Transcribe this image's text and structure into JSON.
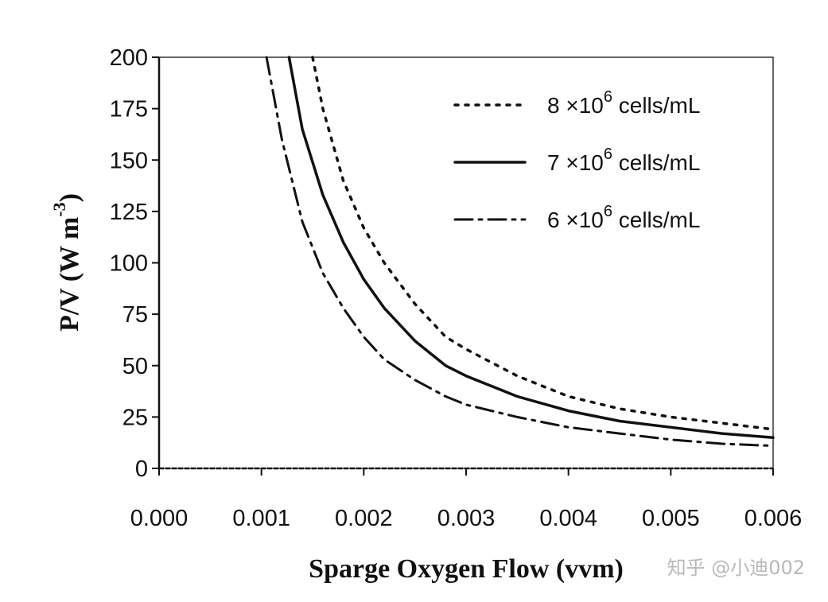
{
  "chart_data": {
    "type": "line",
    "title": "",
    "xlabel": "Sparge Oxygen Flow (vvm)",
    "ylabel": "P/V (W m",
    "ylabel_sup": "-3",
    "ylabel_close": ")",
    "xlim": [
      0,
      0.006
    ],
    "ylim": [
      0,
      200
    ],
    "x_ticks": [
      {
        "value": 0.0,
        "label": "0.000"
      },
      {
        "value": 0.001,
        "label": "0.001"
      },
      {
        "value": 0.002,
        "label": "0.002"
      },
      {
        "value": 0.003,
        "label": "0.003"
      },
      {
        "value": 0.004,
        "label": "0.004"
      },
      {
        "value": 0.005,
        "label": "0.005"
      },
      {
        "value": 0.006,
        "label": "0.006"
      }
    ],
    "y_ticks": [
      {
        "value": 0,
        "label": "0"
      },
      {
        "value": 25,
        "label": "25"
      },
      {
        "value": 50,
        "label": "50"
      },
      {
        "value": 75,
        "label": "75"
      },
      {
        "value": 100,
        "label": "100"
      },
      {
        "value": 125,
        "label": "125"
      },
      {
        "value": 150,
        "label": "150"
      },
      {
        "value": 175,
        "label": "175"
      },
      {
        "value": 200,
        "label": "200"
      }
    ],
    "grid": false,
    "legend_position": "top-right",
    "series": [
      {
        "name": "8 x10^6 cells/mL",
        "legend_prefix": "8 ×10",
        "legend_sup": "6",
        "legend_suffix": " cells/mL",
        "style": "dotted",
        "x": [
          0.0015,
          0.0016,
          0.0018,
          0.002,
          0.0022,
          0.0025,
          0.0028,
          0.003,
          0.0035,
          0.004,
          0.0045,
          0.005,
          0.0055,
          0.006
        ],
        "y": [
          200,
          175,
          140,
          117,
          100,
          80,
          64,
          58,
          45,
          35,
          29,
          25,
          22,
          19
        ]
      },
      {
        "name": "7 x10^6 cells/mL",
        "legend_prefix": "7 ×10",
        "legend_sup": "6",
        "legend_suffix": " cells/mL",
        "style": "solid",
        "x": [
          0.00127,
          0.0014,
          0.0016,
          0.0018,
          0.002,
          0.0022,
          0.0025,
          0.0028,
          0.003,
          0.0035,
          0.004,
          0.0045,
          0.005,
          0.0055,
          0.006
        ],
        "y": [
          200,
          165,
          133,
          110,
          92,
          78,
          62,
          50,
          45,
          35,
          28,
          23,
          20,
          17,
          15
        ]
      },
      {
        "name": "6 x10^6 cells/mL",
        "legend_prefix": "6 ×10",
        "legend_sup": "6",
        "legend_suffix": " cells/mL",
        "style": "dashdot",
        "x": [
          0.00105,
          0.0012,
          0.0014,
          0.0016,
          0.0018,
          0.002,
          0.0022,
          0.0025,
          0.0028,
          0.003,
          0.0035,
          0.004,
          0.0045,
          0.005,
          0.0055,
          0.006
        ],
        "y": [
          200,
          160,
          120,
          95,
          78,
          64,
          53,
          43,
          35,
          31,
          25,
          20,
          17,
          14,
          12,
          11
        ]
      }
    ]
  },
  "watermark": "知乎 @小迪002"
}
